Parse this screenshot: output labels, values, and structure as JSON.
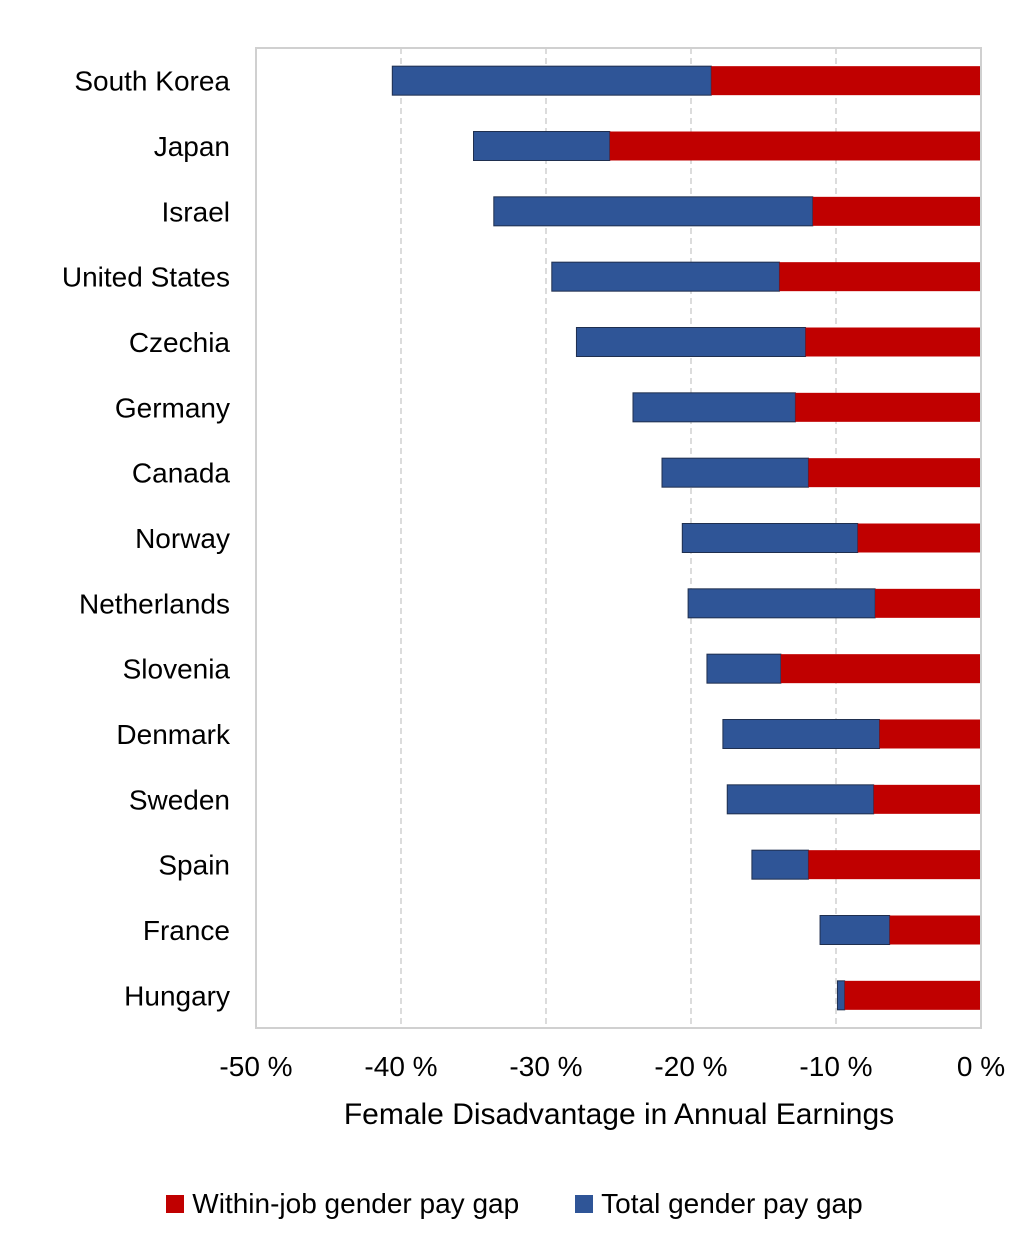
{
  "chart_data": {
    "type": "bar",
    "orientation": "horizontal",
    "xlabel": "Female Disadvantage in Annual Earnings",
    "ylabel": "",
    "xlim": [
      -50,
      0
    ],
    "x_ticks": [
      -50,
      -40,
      -30,
      -20,
      -10,
      0
    ],
    "x_tick_labels": [
      "-50 %",
      "-40 %",
      "-30 %",
      "-20 %",
      "-10 %",
      "0 %"
    ],
    "grid": "vertical-dashed",
    "legend_position": "bottom",
    "categories": [
      "South Korea",
      "Japan",
      "Israel",
      "United States",
      "Czechia",
      "Germany",
      "Canada",
      "Norway",
      "Netherlands",
      "Slovenia",
      "Denmark",
      "Sweden",
      "Spain",
      "France",
      "Hungary"
    ],
    "series": [
      {
        "name": "Within-job gender pay gap",
        "color": "#c00000",
        "values": [
          -18.6,
          -25.6,
          -11.6,
          -13.9,
          -12.1,
          -12.8,
          -11.9,
          -8.5,
          -7.3,
          -13.8,
          -7.0,
          -7.4,
          -11.9,
          -6.3,
          -9.4
        ]
      },
      {
        "name": "Total gender pay gap",
        "color": "#2f5597",
        "values": [
          -40.6,
          -35.0,
          -33.6,
          -29.6,
          -27.9,
          -24.0,
          -22.0,
          -20.6,
          -20.2,
          -18.9,
          -17.8,
          -17.5,
          -15.8,
          -11.1,
          -9.9
        ]
      }
    ]
  }
}
